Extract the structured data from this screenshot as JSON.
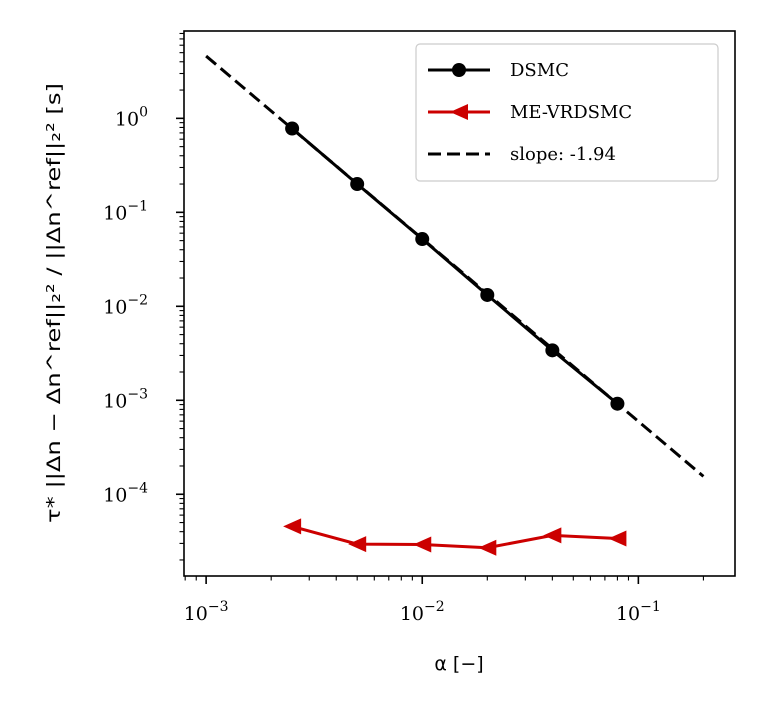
{
  "chart_data": {
    "type": "line",
    "xscale": "log",
    "yscale": "log",
    "xlim": [
      0.00079,
      0.28
    ],
    "ylim": [
      1.35e-05,
      8.5
    ],
    "xlabel": "α [−]",
    "ylabel": "τ* ||Δn − Δn^ref||₂² / ||Δn^ref||₂² [s]",
    "x_ticks": [
      {
        "value": 0.001,
        "base": "10",
        "exp": "−3"
      },
      {
        "value": 0.01,
        "base": "10",
        "exp": "−2"
      },
      {
        "value": 0.1,
        "base": "10",
        "exp": "−1"
      }
    ],
    "y_ticks": [
      {
        "value": 1,
        "base": "10",
        "exp": "0"
      },
      {
        "value": 0.1,
        "base": "10",
        "exp": "−1"
      },
      {
        "value": 0.01,
        "base": "10",
        "exp": "−2"
      },
      {
        "value": 0.001,
        "base": "10",
        "exp": "−3"
      },
      {
        "value": 0.0001,
        "base": "10",
        "exp": "−4"
      }
    ],
    "grid": false,
    "legend_position": "top-right",
    "series": [
      {
        "name": "DSMC",
        "color": "#000000",
        "marker": "circle",
        "linestyle": "solid",
        "x": [
          0.0025,
          0.005,
          0.01,
          0.02,
          0.04,
          0.08
        ],
        "y": [
          0.78,
          0.2,
          0.052,
          0.0132,
          0.0034,
          0.00092
        ]
      },
      {
        "name": "ME-VRDSMC",
        "color": "#cc0000",
        "marker": "triangle-left",
        "linestyle": "solid",
        "x": [
          0.0025,
          0.005,
          0.01,
          0.02,
          0.04,
          0.08
        ],
        "y": [
          4.55e-05,
          2.95e-05,
          2.92e-05,
          2.7e-05,
          3.65e-05,
          3.38e-05
        ]
      },
      {
        "name": "slope: -1.94",
        "color": "#000000",
        "marker": "none",
        "linestyle": "dashed",
        "x": [
          0.001,
          0.2
        ],
        "y": [
          4.6,
          0.000155
        ]
      }
    ]
  }
}
